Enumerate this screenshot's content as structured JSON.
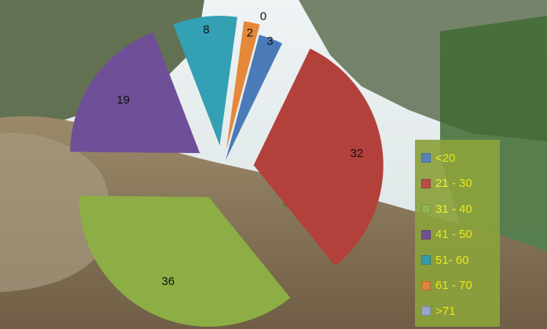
{
  "chart_data": {
    "type": "pie",
    "categories": [
      "<20",
      "21 - 30",
      "31 - 40",
      "41 - 50",
      "51- 60",
      "61 - 70",
      ">71"
    ],
    "values": [
      3,
      32,
      36,
      19,
      8,
      2,
      0
    ],
    "colors": [
      "#4a7ab8",
      "#b2413c",
      "#8dae45",
      "#6f4f98",
      "#33a0b3",
      "#e5883a",
      "#9aaed6"
    ],
    "legend_position": "right",
    "labels": [
      "3",
      "32",
      "36",
      "19",
      "8",
      "2",
      "0"
    ]
  },
  "legend": {
    "items": [
      {
        "label": "<20",
        "color": "#4a7ab8"
      },
      {
        "label": "21 - 30",
        "color": "#b2413c"
      },
      {
        "label": "31 - 40",
        "color": "#8dae45"
      },
      {
        "label": "41 - 50",
        "color": "#6f4f98"
      },
      {
        "label": "51- 60",
        "color": "#33a0b3"
      },
      {
        "label": "61 - 70",
        "color": "#e5883a"
      },
      {
        "label": ">71",
        "color": "#9aaed6"
      }
    ]
  },
  "background": {
    "description_icon": "photo-background-hillside"
  }
}
